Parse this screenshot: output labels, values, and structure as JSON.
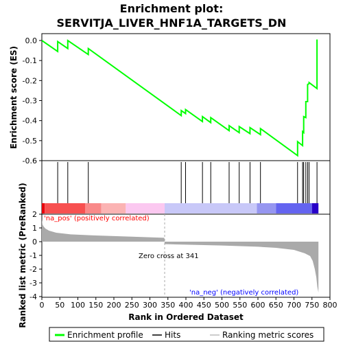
{
  "chart_data": {
    "type": "line",
    "title_line1": "Enrichment plot:",
    "title_line2": "SERVITJA_LIVER_HNF1A_TARGETS_DN",
    "es_ylabel": "Enrichment score (ES)",
    "metric_ylabel": "Ranked list metric (PreRanked)",
    "xlabel": "Rank in Ordered Dataset",
    "es_ylim": [
      -0.6,
      0.0
    ],
    "es_yticks": [
      "0.0",
      "-0.1",
      "-0.2",
      "-0.3",
      "-0.4",
      "-0.5",
      "-0.6"
    ],
    "es_ytick_values": [
      0.0,
      -0.1,
      -0.2,
      -0.3,
      -0.4,
      -0.5,
      -0.6
    ],
    "metric_ylim": [
      -4,
      2
    ],
    "metric_yticks": [
      "2",
      "1",
      "0",
      "-1",
      "-2",
      "-3",
      "-4"
    ],
    "metric_ytick_values": [
      2,
      1,
      0,
      -1,
      -2,
      -3,
      -4
    ],
    "xlim": [
      0,
      800
    ],
    "xticks": [
      "0",
      "50",
      "100",
      "150",
      "200",
      "250",
      "300",
      "350",
      "400",
      "450",
      "500",
      "550",
      "600",
      "650",
      "700",
      "750",
      "800"
    ],
    "xtick_values": [
      0,
      50,
      100,
      150,
      200,
      250,
      300,
      350,
      400,
      450,
      500,
      550,
      600,
      650,
      700,
      750,
      800
    ],
    "n_genes": 768,
    "zero_cross_rank": 341,
    "zero_cross_label": "Zero cross at 341",
    "pos_label": "'na_pos' (positively correlated)",
    "neg_label": "'na_neg' (negatively correlated)",
    "hits": [
      44,
      72,
      129,
      387,
      399,
      446,
      469,
      520,
      548,
      578,
      607,
      710,
      724,
      727,
      733,
      738,
      742,
      764
    ],
    "es_profile": {
      "x": [
        0,
        44,
        44,
        72,
        72,
        129,
        129,
        387,
        387,
        399,
        399,
        446,
        446,
        469,
        469,
        520,
        520,
        548,
        548,
        578,
        578,
        607,
        607,
        710,
        710,
        724,
        724,
        727,
        727,
        733,
        733,
        738,
        738,
        742,
        742,
        764,
        764
      ],
      "y": [
        0.0,
        -0.055,
        -0.005,
        -0.04,
        0.0,
        -0.07,
        -0.04,
        -0.375,
        -0.35,
        -0.365,
        -0.345,
        -0.405,
        -0.38,
        -0.41,
        -0.385,
        -0.45,
        -0.425,
        -0.46,
        -0.43,
        -0.465,
        -0.435,
        -0.47,
        -0.44,
        -0.575,
        -0.505,
        -0.525,
        -0.455,
        -0.46,
        -0.38,
        -0.385,
        -0.305,
        -0.305,
        -0.22,
        -0.215,
        -0.21,
        -0.24,
        0.005
      ]
    },
    "metric_profile": {
      "x": [
        0,
        2,
        5,
        10,
        20,
        40,
        80,
        150,
        250,
        340,
        341,
        400,
        500,
        600,
        650,
        700,
        730,
        745,
        752,
        758,
        762,
        765,
        768
      ],
      "y": [
        1.6,
        1.25,
        1.1,
        0.95,
        0.8,
        0.65,
        0.53,
        0.45,
        0.36,
        0.28,
        -0.18,
        -0.22,
        -0.28,
        -0.37,
        -0.45,
        -0.6,
        -0.85,
        -1.05,
        -1.4,
        -2.0,
        -2.6,
        -3.3,
        -3.7
      ]
    },
    "band_colors": [
      {
        "from": 0,
        "to": 8,
        "color": "#e8000b"
      },
      {
        "from": 8,
        "to": 120,
        "color": "#f75050"
      },
      {
        "from": 120,
        "to": 165,
        "color": "#f98989"
      },
      {
        "from": 165,
        "to": 233,
        "color": "#fbb3b3"
      },
      {
        "from": 233,
        "to": 341,
        "color": "#fbc8f0"
      },
      {
        "from": 341,
        "to": 597,
        "color": "#c8c8f8"
      },
      {
        "from": 597,
        "to": 650,
        "color": "#9696f0"
      },
      {
        "from": 650,
        "to": 750,
        "color": "#6464f0"
      },
      {
        "from": 750,
        "to": 768,
        "color": "#2800c8"
      }
    ],
    "colors": {
      "es_line": "#00ff00",
      "hit": "#000000",
      "metric_fill": "#aaaaaa",
      "zero_line": "#aaaaaa"
    },
    "legend": [
      {
        "label": "Enrichment profile",
        "color": "#00ff00"
      },
      {
        "label": "Hits",
        "color": "#000000"
      },
      {
        "label": "Ranking metric scores",
        "color": "#bbbbbb"
      }
    ]
  }
}
